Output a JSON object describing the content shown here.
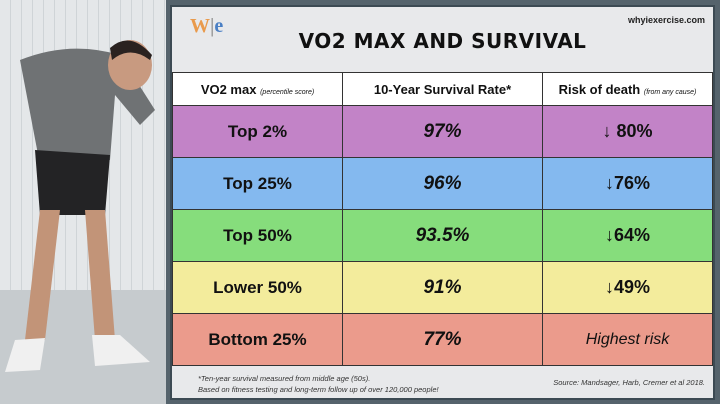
{
  "header": {
    "logo": "W|e",
    "site": "whyiexercise.com",
    "title": "VO2 MAX AND SURVIVAL"
  },
  "columns": [
    {
      "label": "VO2 max",
      "note": "(percentile score)"
    },
    {
      "label": "10-Year Survival Rate*",
      "note": ""
    },
    {
      "label": "Risk of death",
      "note": "(from any cause)"
    }
  ],
  "rows": [
    {
      "group": "Top 2%",
      "survival": "97%",
      "risk": "↓ 80%",
      "color": "#c283c7"
    },
    {
      "group": "Top 25%",
      "survival": "96%",
      "risk": "↓76%",
      "color": "#84b9ef"
    },
    {
      "group": "Top 50%",
      "survival": "93.5%",
      "risk": "↓64%",
      "color": "#86dd7c"
    },
    {
      "group": "Lower 50%",
      "survival": "91%",
      "risk": "↓49%",
      "color": "#f3ec9c"
    },
    {
      "group": "Bottom 25%",
      "survival": "77%",
      "risk": "Highest risk",
      "color": "#eb9b8c"
    }
  ],
  "footer": {
    "note1": "*Ten-year survival measured from middle age (50s).",
    "note2": "Based on fitness testing and long-term follow up of over 120,000 people!",
    "source": "Source: Mandsager, Harb, Cremer et al 2018."
  }
}
